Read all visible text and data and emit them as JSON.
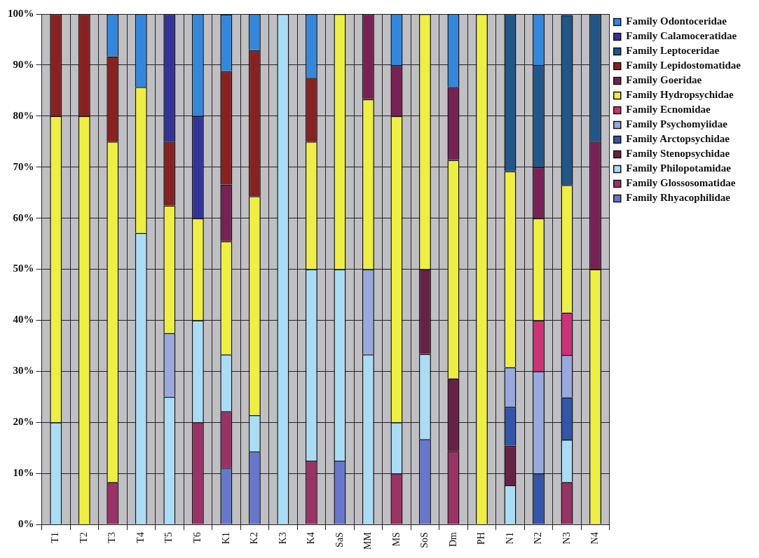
{
  "chart_data": {
    "type": "bar",
    "stacked": true,
    "categories": [
      "T1",
      "T2",
      "T3",
      "T4",
      "T5",
      "T6",
      "K1",
      "K2",
      "K3",
      "K4",
      "SaS",
      "MM",
      "MS",
      "SoS",
      "Dm",
      "PH",
      "N1",
      "N2",
      "N3",
      "N4"
    ],
    "series": [
      {
        "name": "Family Rhyacophilidae",
        "color": "#6677cc",
        "values": [
          null,
          null,
          null,
          null,
          null,
          null,
          11.1,
          14.3,
          null,
          null,
          12.5,
          null,
          null,
          16.7,
          null,
          null,
          null,
          null,
          null,
          null
        ]
      },
      {
        "name": "Family Glossosomatidae",
        "color": "#993366",
        "values": [
          null,
          null,
          8.3,
          null,
          null,
          20,
          11.1,
          null,
          null,
          12.5,
          null,
          null,
          10,
          null,
          14.3,
          null,
          null,
          null,
          8.3,
          null
        ]
      },
      {
        "name": "Family Philopotamidae",
        "color": "#aaddf5",
        "values": [
          20,
          null,
          null,
          57.1,
          25,
          20,
          11.1,
          7.1,
          100,
          37.5,
          37.5,
          33.3,
          10,
          16.7,
          null,
          null,
          7.7,
          null,
          8.3,
          null
        ]
      },
      {
        "name": "Family Stenopsychidae",
        "color": "#662244",
        "values": [
          null,
          null,
          null,
          null,
          null,
          null,
          null,
          null,
          null,
          null,
          null,
          null,
          null,
          16.6,
          14.3,
          null,
          7.7,
          null,
          null,
          null
        ]
      },
      {
        "name": "Family Arctopsychidae",
        "color": "#3355aa",
        "values": [
          null,
          null,
          null,
          null,
          null,
          null,
          null,
          null,
          null,
          null,
          null,
          null,
          null,
          null,
          null,
          null,
          7.7,
          10,
          8.3,
          null
        ]
      },
      {
        "name": "Family Psychomyiidae",
        "color": "#99a8dd",
        "values": [
          null,
          null,
          null,
          null,
          12.5,
          null,
          null,
          null,
          null,
          null,
          null,
          16.7,
          null,
          null,
          null,
          null,
          7.7,
          20,
          8.3,
          null
        ]
      },
      {
        "name": "Family Ecnomidae",
        "color": "#cc3377",
        "values": [
          null,
          null,
          null,
          null,
          null,
          null,
          null,
          null,
          null,
          null,
          null,
          null,
          null,
          null,
          null,
          null,
          null,
          10,
          8.3,
          null
        ]
      },
      {
        "name": "Family Hydropsychidae",
        "color": "#eeee44",
        "values": [
          60,
          80,
          66.7,
          28.6,
          25,
          20,
          22.2,
          42.9,
          null,
          25,
          50,
          33.3,
          60,
          50,
          42.8,
          100,
          38.4,
          20,
          25,
          50
        ]
      },
      {
        "name": "Family Goeridae",
        "color": "#772255",
        "values": [
          null,
          null,
          null,
          null,
          null,
          null,
          11.1,
          null,
          null,
          null,
          null,
          16.7,
          10,
          null,
          14.3,
          null,
          null,
          10,
          null,
          25
        ]
      },
      {
        "name": "Family Lepidostomatidae",
        "color": "#882222",
        "values": [
          20,
          20,
          16.7,
          null,
          12.5,
          null,
          22.2,
          28.6,
          null,
          12.5,
          null,
          null,
          null,
          null,
          null,
          null,
          null,
          null,
          null,
          null
        ]
      },
      {
        "name": "Family Leptoceridae",
        "color": "#225588",
        "values": [
          null,
          null,
          null,
          null,
          null,
          null,
          null,
          null,
          null,
          null,
          null,
          null,
          null,
          null,
          null,
          null,
          30.8,
          20,
          33.3,
          25
        ]
      },
      {
        "name": "Family Calamoceratidae",
        "color": "#333399",
        "values": [
          null,
          null,
          null,
          null,
          25,
          20,
          null,
          null,
          null,
          null,
          null,
          null,
          null,
          null,
          null,
          null,
          null,
          null,
          null,
          null
        ]
      },
      {
        "name": "Family Odontoceridae",
        "color": "#3388dd",
        "values": [
          null,
          null,
          8.3,
          14.3,
          null,
          20,
          11.1,
          7.1,
          null,
          12.5,
          null,
          null,
          10,
          null,
          14.3,
          null,
          null,
          10,
          null,
          null
        ]
      }
    ],
    "ylim": [
      0,
      100
    ],
    "yticks": [
      {
        "value": 0,
        "label": "0%"
      },
      {
        "value": 10,
        "label": "10%"
      },
      {
        "value": 20,
        "label": "20%"
      },
      {
        "value": 30,
        "label": "30%"
      },
      {
        "value": 40,
        "label": "40%"
      },
      {
        "value": 50,
        "label": "50%"
      },
      {
        "value": 60,
        "label": "60%"
      },
      {
        "value": 70,
        "label": "70%"
      },
      {
        "value": 80,
        "label": "80%"
      },
      {
        "value": 90,
        "label": "90%"
      },
      {
        "value": 100,
        "label": "100%"
      }
    ],
    "grid": true,
    "legend": "top right"
  }
}
